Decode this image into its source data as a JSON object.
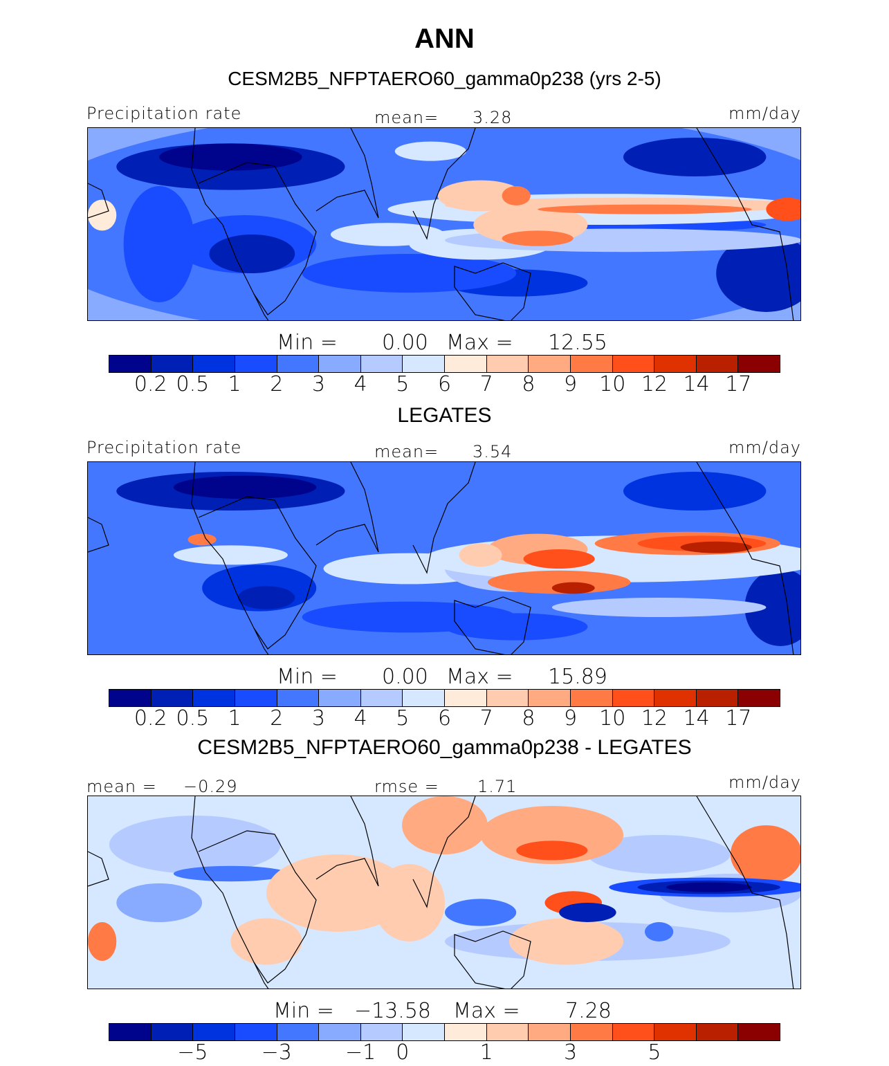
{
  "figure_title": "ANN",
  "chart_data": [
    {
      "type": "heatmap",
      "title": "CESM2B5_NFPTAERO60_gamma0p238 (yrs 2-5)",
      "left_label": "Precipitation rate",
      "center_label": "mean=",
      "center_value": "3.28",
      "units": "mm/day",
      "min_label": "Min =",
      "min_value": "0.00",
      "max_label": "Max =",
      "max_value": "12.55",
      "colorbar_ticks": [
        "0.2",
        "0.5",
        "1",
        "2",
        "3",
        "4",
        "5",
        "6",
        "7",
        "8",
        "9",
        "10",
        "12",
        "14",
        "17"
      ]
    },
    {
      "type": "heatmap",
      "title": "LEGATES",
      "left_label": "Precipitation rate",
      "center_label": "mean=",
      "center_value": "3.54",
      "units": "mm/day",
      "min_label": "Min =",
      "min_value": "0.00",
      "max_label": "Max =",
      "max_value": "15.89",
      "colorbar_ticks": [
        "0.2",
        "0.5",
        "1",
        "2",
        "3",
        "4",
        "5",
        "6",
        "7",
        "8",
        "9",
        "10",
        "12",
        "14",
        "17"
      ]
    },
    {
      "type": "heatmap",
      "title": "CESM2B5_NFPTAERO60_gamma0p238 - LEGATES",
      "left_label": "mean =",
      "left_value": "−0.29",
      "center_label": "rmse =",
      "center_value": "1.71",
      "units": "mm/day",
      "min_label": "Min =",
      "min_value": "−13.58",
      "max_label": "Max =",
      "max_value": "7.28",
      "colorbar_ticks": [
        "−5",
        "−3",
        "−1",
        "0",
        "1",
        "3",
        "5"
      ]
    }
  ],
  "colors": [
    "#00038c",
    "#0020b5",
    "#0033e0",
    "#1a4cff",
    "#4477ff",
    "#88aaff",
    "#b5cbff",
    "#d6e8ff",
    "#ffebd9",
    "#ffccb0",
    "#ffaa80",
    "#ff7a45",
    "#ff4f1a",
    "#e03200",
    "#b82000",
    "#8b0000"
  ]
}
